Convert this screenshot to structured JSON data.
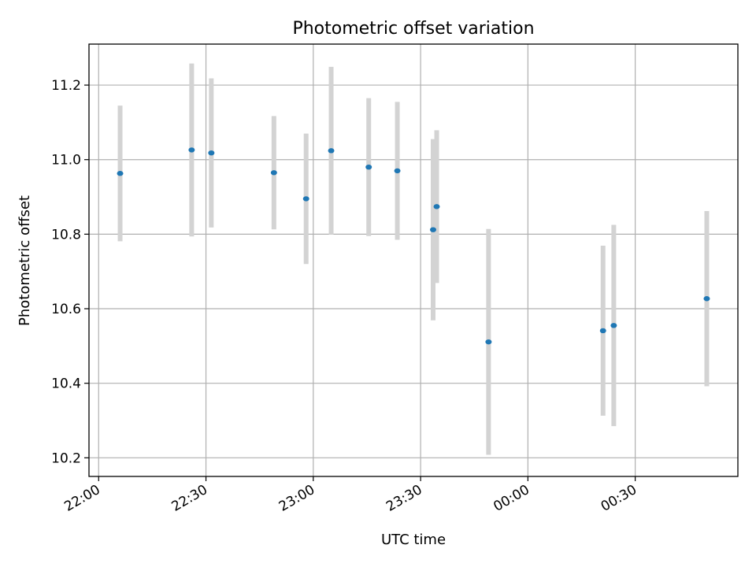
{
  "chart_data": {
    "type": "scatter",
    "title": "Photometric offset variation",
    "xlabel": "UTC time",
    "ylabel": "Photometric offset",
    "x_ticks": [
      "22:00",
      "22:30",
      "23:00",
      "23:30",
      "00:00",
      "00:30"
    ],
    "y_ticks": [
      "10.2",
      "10.4",
      "10.6",
      "10.8",
      "11.0",
      "11.2"
    ],
    "xlim": [
      "21:57:18",
      "00:58:42"
    ],
    "ylim": [
      10.15,
      11.31
    ],
    "grid": true,
    "colors": {
      "point": "#1f77b4",
      "errorbar": "#d3d3d3",
      "grid": "#b0b0b0"
    },
    "series": [
      {
        "points": [
          {
            "x": "22:06",
            "y": 10.963,
            "yerr": 0.182
          },
          {
            "x": "22:26",
            "y": 11.026,
            "yerr": 0.232
          },
          {
            "x": "22:31.5",
            "y": 11.018,
            "yerr": 0.2
          },
          {
            "x": "22:49",
            "y": 10.965,
            "yerr": 0.152
          },
          {
            "x": "22:58",
            "y": 10.895,
            "yerr": 0.175
          },
          {
            "x": "23:05",
            "y": 11.024,
            "yerr": 0.225
          },
          {
            "x": "23:15.5",
            "y": 10.98,
            "yerr": 0.185
          },
          {
            "x": "23:23.5",
            "y": 10.97,
            "yerr": 0.185
          },
          {
            "x": "23:33.5",
            "y": 10.812,
            "yerr": 0.243
          },
          {
            "x": "23:34.5",
            "y": 10.874,
            "yerr": 0.205
          },
          {
            "x": "23:49",
            "y": 10.511,
            "yerr": 0.303
          },
          {
            "x": "00:21",
            "y": 10.541,
            "yerr": 0.228
          },
          {
            "x": "00:24",
            "y": 10.555,
            "yerr": 0.27
          },
          {
            "x": "00:50",
            "y": 10.627,
            "yerr": 0.235
          }
        ]
      }
    ]
  }
}
